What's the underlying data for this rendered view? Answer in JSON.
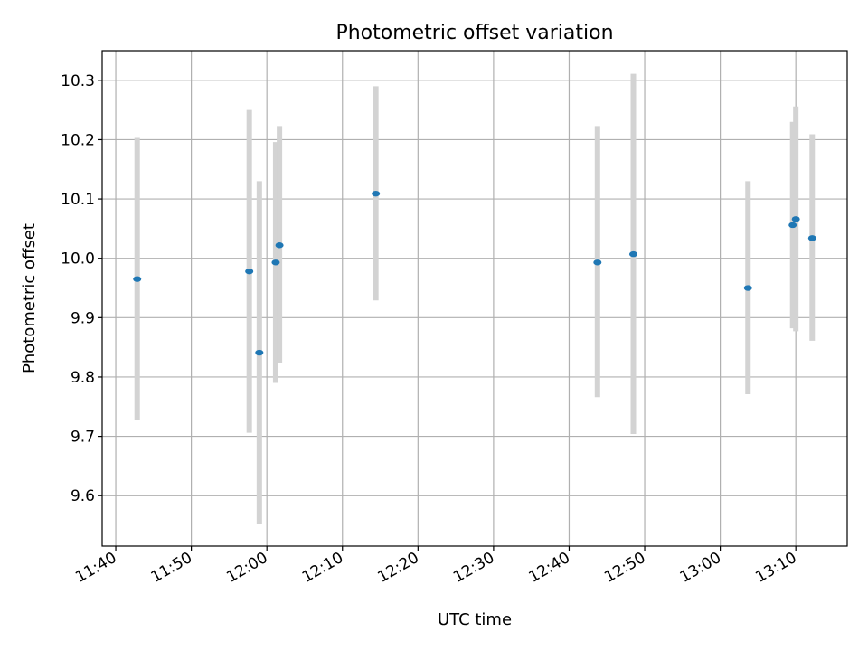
{
  "chart_data": {
    "type": "scatter",
    "title": "Photometric offset variation",
    "xlabel": "UTC time",
    "ylabel": "Photometric offset",
    "xlim_minutes": [
      698.2,
      796.8
    ],
    "ylim": [
      9.515,
      10.35
    ],
    "x_ticks": [
      "11:40",
      "11:50",
      "12:00",
      "12:10",
      "12:20",
      "12:30",
      "12:40",
      "12:50",
      "13:00",
      "13:10"
    ],
    "y_ticks": [
      "9.6",
      "9.7",
      "9.8",
      "9.9",
      "10.0",
      "10.1",
      "10.2",
      "10.3"
    ],
    "grid": true,
    "colors": {
      "point": "#1f77b4",
      "errorbar": "#d3d3d3"
    },
    "points": [
      {
        "time": "11:42:50",
        "y": 9.965,
        "ylow": 9.727,
        "yhigh": 10.203
      },
      {
        "time": "11:57:40",
        "y": 9.978,
        "ylow": 9.706,
        "yhigh": 10.25
      },
      {
        "time": "11:59:00",
        "y": 9.841,
        "ylow": 9.553,
        "yhigh": 10.13
      },
      {
        "time": "12:01:10",
        "y": 9.993,
        "ylow": 9.79,
        "yhigh": 10.196
      },
      {
        "time": "12:01:40",
        "y": 10.022,
        "ylow": 9.824,
        "yhigh": 10.223
      },
      {
        "time": "12:14:25",
        "y": 10.109,
        "ylow": 9.929,
        "yhigh": 10.29
      },
      {
        "time": "12:43:45",
        "y": 9.993,
        "ylow": 9.766,
        "yhigh": 10.223
      },
      {
        "time": "12:48:30",
        "y": 10.007,
        "ylow": 9.704,
        "yhigh": 10.311
      },
      {
        "time": "13:03:40",
        "y": 9.95,
        "ylow": 9.771,
        "yhigh": 10.13
      },
      {
        "time": "13:09:35",
        "y": 10.056,
        "ylow": 9.882,
        "yhigh": 10.23
      },
      {
        "time": "13:10:00",
        "y": 10.066,
        "ylow": 9.877,
        "yhigh": 10.256
      },
      {
        "time": "13:12:10",
        "y": 10.034,
        "ylow": 9.861,
        "yhigh": 10.209
      }
    ]
  }
}
